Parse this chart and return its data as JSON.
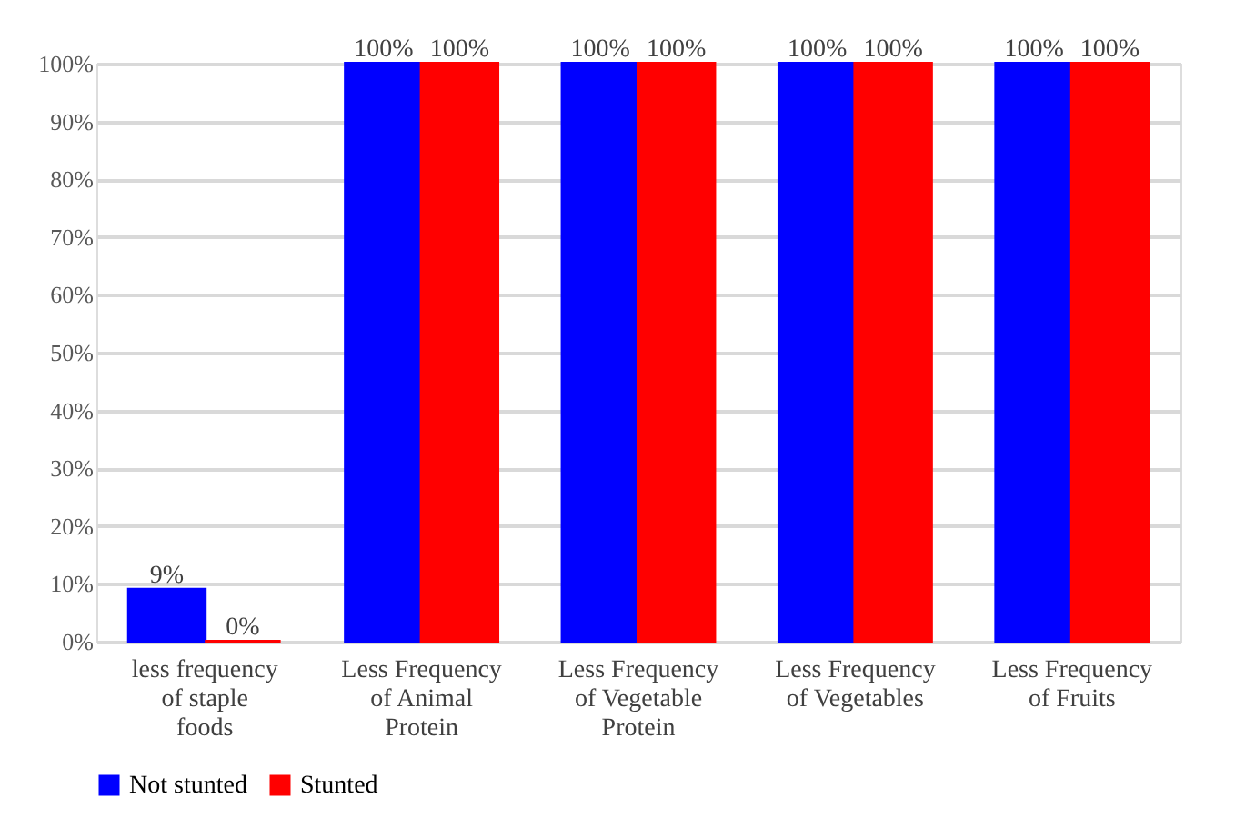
{
  "chart_data": {
    "type": "bar",
    "categories": [
      "less frequency of staple foods",
      "Less Frequency of Animal Protein",
      "Less Frequency of Vegetable Protein",
      "Less Frequency of Vegetables",
      "Less Frequency of Fruits"
    ],
    "series": [
      {
        "name": "Not stunted",
        "color": "#0000ff",
        "values": [
          9,
          100,
          100,
          100,
          100
        ],
        "value_labels": [
          "9%",
          "100%",
          "100%",
          "100%",
          "100%"
        ]
      },
      {
        "name": "Stunted",
        "color": "#ff0000",
        "values": [
          0,
          100,
          100,
          100,
          100
        ],
        "value_labels": [
          "0%",
          "100%",
          "100%",
          "100%",
          "100%"
        ]
      }
    ],
    "ylim": [
      0,
      100
    ],
    "yticks": [
      {
        "value": 0,
        "label": "0%"
      },
      {
        "value": 10,
        "label": "10%"
      },
      {
        "value": 20,
        "label": "20%"
      },
      {
        "value": 30,
        "label": "30%"
      },
      {
        "value": 40,
        "label": "40%"
      },
      {
        "value": 50,
        "label": "50%"
      },
      {
        "value": 60,
        "label": "60%"
      },
      {
        "value": 70,
        "label": "70%"
      },
      {
        "value": 80,
        "label": "80%"
      },
      {
        "value": 90,
        "label": "90%"
      },
      {
        "value": 100,
        "label": "100%"
      }
    ],
    "grid": "y",
    "legend": "bottom"
  }
}
